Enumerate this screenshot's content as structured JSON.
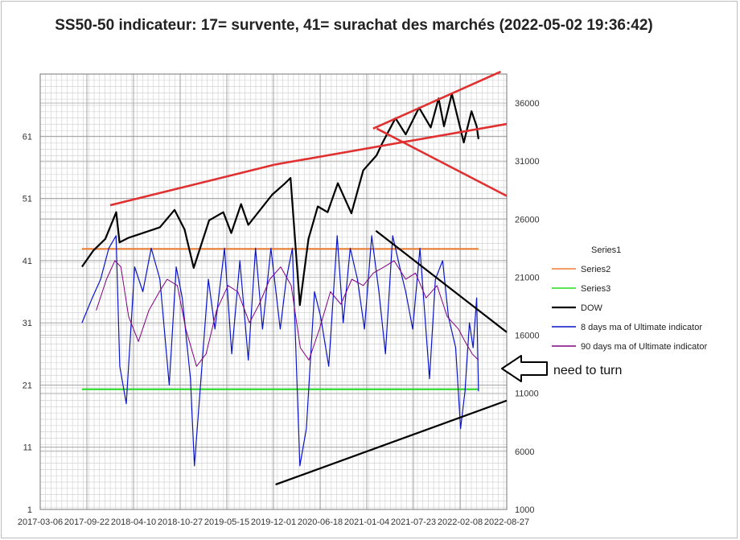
{
  "title": "SS50-50 indicateur: 17= survente, 41= surachat des marchés (2022-05-02 19:36:42)",
  "annotation": "need to turn",
  "chart_data": {
    "type": "line",
    "title": "SS50-50 indicateur: 17= survente, 41= surachat des marchés (2022-05-02 19:36:42)",
    "x_ticks": [
      "2017-03-06",
      "2017-09-22",
      "2018-04-10",
      "2018-10-27",
      "2019-05-15",
      "2019-12-01",
      "2020-06-18",
      "2021-01-04",
      "2021-07-23",
      "2022-02-08",
      "2022-08-27"
    ],
    "xlim": [
      "2017-03-06",
      "2022-08-27"
    ],
    "y_left_ticks": [
      1,
      11,
      21,
      31,
      41,
      51,
      61
    ],
    "ylim_left": [
      1,
      71
    ],
    "y_right_ticks": [
      1000,
      6000,
      11000,
      16000,
      21000,
      26000,
      31000,
      36000
    ],
    "ylim_right": [
      1000,
      38500
    ],
    "grid": true,
    "legend_position": "right",
    "legend": [
      "Series1",
      "Series2",
      "Series3",
      "DOW",
      "8 days ma of Ultimate indicator",
      "90 days ma of Ultimate indicator"
    ],
    "colors": {
      "Series1": "#4472c4",
      "Series2": "#ed7d31",
      "Series3": "#22dd22",
      "DOW": "#000000",
      "8 days ma": "#0a14c8",
      "90 days ma": "#800080",
      "trend_red": "#e03030",
      "trend_black": "#000000"
    },
    "series": [
      {
        "name": "Series2",
        "axis": "left",
        "x": [
          "2017-09-01",
          "2022-04-28"
        ],
        "values": [
          42.9,
          42.9
        ]
      },
      {
        "name": "Series3",
        "axis": "left",
        "x": [
          "2017-09-01",
          "2022-04-28"
        ],
        "values": [
          20.3,
          20.3
        ]
      },
      {
        "name": "DOW",
        "axis": "right",
        "x": [
          "2017-09-01",
          "2017-10-20",
          "2017-12-10",
          "2018-01-26",
          "2018-02-09",
          "2018-03-20",
          "2018-05-20",
          "2018-08-01",
          "2018-10-03",
          "2018-11-15",
          "2018-12-24",
          "2019-02-28",
          "2019-04-30",
          "2019-06-03",
          "2019-07-15",
          "2019-08-15",
          "2019-11-25",
          "2020-01-15",
          "2020-02-12",
          "2020-03-23",
          "2020-04-29",
          "2020-06-08",
          "2020-07-20",
          "2020-09-02",
          "2020-10-30",
          "2020-12-20",
          "2021-02-15",
          "2021-03-10",
          "2021-05-07",
          "2021-06-20",
          "2021-08-16",
          "2021-10-05",
          "2021-11-08",
          "2021-12-01",
          "2022-01-04",
          "2022-02-24",
          "2022-03-29",
          "2022-04-20",
          "2022-04-28"
        ],
        "values": [
          21900,
          23300,
          24300,
          26600,
          24000,
          24400,
          24800,
          25300,
          26800,
          25100,
          21800,
          25900,
          26600,
          24800,
          27300,
          25500,
          28100,
          29000,
          29550,
          18600,
          24300,
          27100,
          26600,
          29100,
          26500,
          30200,
          31500,
          32500,
          34700,
          33300,
          35600,
          33900,
          36400,
          34000,
          36800,
          32600,
          35300,
          34000,
          32900
        ]
      },
      {
        "name": "8 days ma of Ultimate indicator",
        "axis": "left",
        "x": [
          "2017-09-01",
          "2017-10-15",
          "2017-11-20",
          "2017-12-25",
          "2018-01-25",
          "2018-02-10",
          "2018-03-10",
          "2018-04-15",
          "2018-05-20",
          "2018-06-25",
          "2018-08-01",
          "2018-09-10",
          "2018-10-10",
          "2018-11-05",
          "2018-12-10",
          "2018-12-27",
          "2019-01-20",
          "2019-02-25",
          "2019-03-25",
          "2019-05-05",
          "2019-06-05",
          "2019-07-10",
          "2019-08-15",
          "2019-09-15",
          "2019-10-15",
          "2019-11-20",
          "2019-12-30",
          "2020-01-25",
          "2020-02-20",
          "2020-03-23",
          "2020-04-20",
          "2020-05-25",
          "2020-06-20",
          "2020-07-25",
          "2020-08-30",
          "2020-09-25",
          "2020-10-25",
          "2020-11-25",
          "2020-12-25",
          "2021-01-25",
          "2021-02-25",
          "2021-03-25",
          "2021-04-25",
          "2021-05-25",
          "2021-06-20",
          "2021-07-20",
          "2021-08-20",
          "2021-09-30",
          "2021-10-25",
          "2021-11-25",
          "2021-12-20",
          "2022-01-20",
          "2022-02-10",
          "2022-03-01",
          "2022-03-20",
          "2022-04-05",
          "2022-04-20",
          "2022-04-28"
        ],
        "values": [
          31,
          35,
          38,
          43,
          45,
          24,
          18,
          40,
          36,
          43,
          38,
          21,
          40,
          35,
          22,
          8,
          20,
          38,
          30,
          43,
          26,
          41,
          25,
          43,
          30,
          43,
          30,
          38,
          43,
          8,
          14,
          36,
          32,
          24,
          45,
          31,
          43,
          38,
          30,
          45,
          36,
          26,
          45,
          40,
          36,
          30,
          43,
          22,
          38,
          41,
          32,
          27,
          14,
          20,
          31,
          27,
          35,
          20
        ]
      },
      {
        "name": "90 days ma of Ultimate indicator",
        "axis": "left",
        "x": [
          "2017-11-01",
          "2017-12-15",
          "2018-01-20",
          "2018-02-15",
          "2018-03-20",
          "2018-05-01",
          "2018-06-15",
          "2018-07-30",
          "2018-09-01",
          "2018-10-15",
          "2018-11-20",
          "2019-01-05",
          "2019-02-15",
          "2019-04-01",
          "2019-05-20",
          "2019-07-01",
          "2019-08-20",
          "2019-10-01",
          "2019-11-15",
          "2020-01-01",
          "2020-02-15",
          "2020-03-25",
          "2020-05-01",
          "2020-06-15",
          "2020-08-01",
          "2020-09-15",
          "2020-11-01",
          "2020-12-20",
          "2021-02-01",
          "2021-03-20",
          "2021-05-01",
          "2021-06-20",
          "2021-08-01",
          "2021-09-15",
          "2021-11-01",
          "2021-12-15",
          "2022-02-01",
          "2022-03-01",
          "2022-04-01",
          "2022-04-28"
        ],
        "values": [
          33,
          38,
          41,
          40,
          32,
          28,
          33,
          36,
          38,
          37,
          30,
          24,
          26,
          33,
          37,
          36,
          31,
          34,
          38,
          40,
          37,
          27,
          25,
          30,
          36,
          34,
          38,
          37,
          39,
          40,
          41,
          38,
          39,
          35,
          37,
          32,
          30,
          28,
          26,
          25
        ]
      }
    ],
    "trendlines": [
      {
        "color": "red",
        "axis": "right",
        "x": [
          "2017-12-31",
          "2019-12-07"
        ],
        "values": [
          27200,
          30700
        ]
      },
      {
        "color": "red",
        "axis": "right",
        "x": [
          "2019-12-07",
          "2022-08-27"
        ],
        "values": [
          30700,
          34200
        ]
      },
      {
        "color": "red",
        "axis": "right",
        "x": [
          "2021-01-31",
          "2022-08-01"
        ],
        "values": [
          33800,
          38700
        ]
      },
      {
        "color": "red",
        "axis": "right",
        "x": [
          "2021-02-16",
          "2022-08-27"
        ],
        "values": [
          33800,
          28000
        ]
      },
      {
        "color": "black",
        "axis": "left",
        "x": [
          "2021-02-12",
          "2022-08-27"
        ],
        "values": [
          45.8,
          29.5
        ]
      },
      {
        "color": "black",
        "axis": "left",
        "x": [
          "2019-12-10",
          "2022-08-27"
        ],
        "values": [
          5,
          18.5
        ]
      }
    ]
  }
}
